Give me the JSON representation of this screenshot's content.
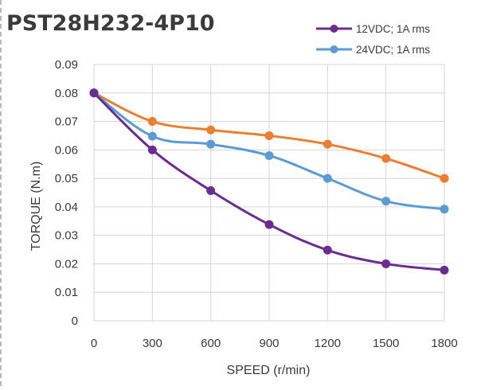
{
  "chart_data": {
    "type": "line",
    "title": "PST28H232-4P10",
    "xlabel": "SPEED (r/min)",
    "ylabel": "TORQUE (N.m)",
    "x": [
      0,
      300,
      600,
      900,
      1200,
      1500,
      1800
    ],
    "x_tick_labels": [
      "0",
      "300",
      "600",
      "900",
      "1200",
      "1500",
      "1800"
    ],
    "ylim": [
      0,
      0.09
    ],
    "y_ticks": [
      0,
      0.01,
      0.02,
      0.03,
      0.04,
      0.05,
      0.06,
      0.07,
      0.08,
      0.09
    ],
    "y_tick_labels": [
      "0",
      "0.01",
      "0.02",
      "0.03",
      "0.04",
      "0.05",
      "0.06",
      "0.07",
      "0.08",
      "0.09"
    ],
    "grid": true,
    "legend_position": "top-right",
    "series": [
      {
        "name": "12VDC; 1A rms",
        "color": "#6a2c91",
        "values": [
          0.08,
          0.06,
          0.0457,
          0.0338,
          0.0248,
          0.02,
          0.0178
        ]
      },
      {
        "name": "24VDC; 1A rms",
        "color": "#5b9bd5",
        "values": [
          0.08,
          0.0648,
          0.062,
          0.058,
          0.05,
          0.042,
          0.0392
        ]
      },
      {
        "name": "",
        "color": "#ed7d31",
        "values": [
          0.08,
          0.07,
          0.067,
          0.065,
          0.062,
          0.057,
          0.05
        ]
      }
    ]
  }
}
